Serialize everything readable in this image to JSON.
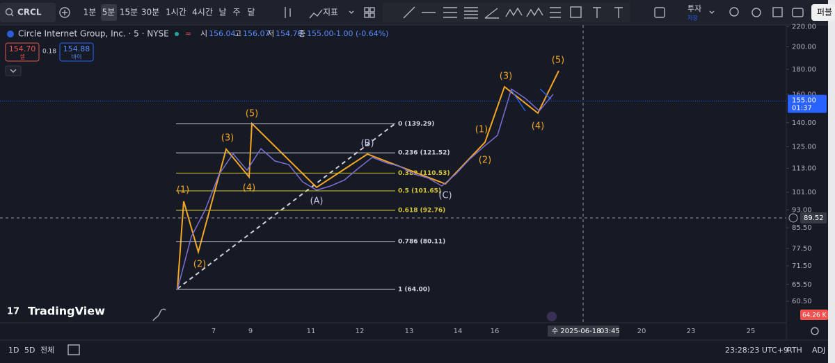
{
  "toolbar": {
    "symbol": "CRCL",
    "intervals": [
      "1분",
      "5분",
      "15분",
      "30분",
      "1시간",
      "4시간",
      "날",
      "주",
      "달"
    ],
    "indicators": "지표",
    "invest": "투자",
    "save": "저장",
    "publish": "퍼블"
  },
  "legend": {
    "title": "Circle Internet Group, Inc. · 5 · NYSE",
    "open_label": "시",
    "open": "156.04",
    "high_label": "고",
    "high": "156.07",
    "low_label": "저",
    "low": "154.70",
    "close_label": "종",
    "close": "155.00",
    "change": "-1.00 (-0.64%)",
    "sell_price": "154.70",
    "sell": "셀",
    "spread": "0.18",
    "buy_price": "154.88",
    "buy": "바이"
  },
  "chart_data": {
    "type": "line",
    "log_scale": true,
    "grid": false,
    "color": "#7b6fd6",
    "ylim": [
      54.7,
      226
    ],
    "yticks": [
      {
        "value": 220,
        "label": "220.00"
      },
      {
        "value": 200,
        "label": "200.00"
      },
      {
        "value": 180,
        "label": "180.00"
      },
      {
        "value": 160,
        "label": "160.00"
      },
      {
        "value": 140,
        "label": "140.00"
      },
      {
        "value": 125,
        "label": "125.00"
      },
      {
        "value": 113,
        "label": "113.00"
      },
      {
        "value": 101,
        "label": "101.00"
      },
      {
        "value": 93,
        "label": "93.00"
      },
      {
        "value": 85.5,
        "label": "85.50"
      },
      {
        "value": 77.5,
        "label": "77.50"
      },
      {
        "value": 71.5,
        "label": "71.50"
      },
      {
        "value": 65.5,
        "label": "65.50"
      },
      {
        "value": 60.5,
        "label": "60.50"
      }
    ],
    "values": [
      64,
      82,
      93,
      110,
      121,
      112,
      124,
      117,
      115,
      106,
      102,
      104,
      107,
      113,
      119,
      116,
      114,
      110,
      108,
      104,
      110,
      118,
      125,
      132,
      164,
      157,
      148,
      160
    ],
    "xtick_labels": [
      "7",
      "9",
      "11",
      "12",
      "13",
      "14",
      "16",
      "20",
      "23",
      "25"
    ],
    "crosshair_time": "수 2025-06-18",
    "crosshair_clock": "03:45",
    "crosshair_price": {
      "value": 89.52,
      "label": "89.52"
    },
    "last_price": {
      "value": 155,
      "label": "155.00"
    },
    "countdown": "01:37",
    "volume_label": "64.26 K",
    "fib_levels": [
      {
        "label": "0 (139.29)",
        "price": 139.29,
        "color": "#d1d4dc"
      },
      {
        "label": "0.236 (121.52)",
        "price": 121.52,
        "color": "#d1d4dc"
      },
      {
        "label": "0.382 (110.53)",
        "price": 110.53,
        "color": "#d9c53a"
      },
      {
        "label": "0.5 (101.65)",
        "price": 101.65,
        "color": "#d9c53a"
      },
      {
        "label": "0.618 (92.76)",
        "price": 92.76,
        "color": "#d9c53a"
      },
      {
        "label": "0.786 (80.11)",
        "price": 80.11,
        "color": "#d1d4dc"
      },
      {
        "label": "1 (64.00)",
        "price": 64,
        "color": "#d1d4dc"
      }
    ],
    "wave_labels": [
      "(1)",
      "(2)",
      "(3)",
      "(4)",
      "(5)",
      "(A)",
      "(B)",
      "(C)",
      "(1)",
      "(2)",
      "(3)",
      "(4)",
      "(5)"
    ]
  },
  "branding": "TradingView",
  "bottom_bar": {
    "ranges": [
      "1D",
      "5D",
      "전체"
    ],
    "clock": "23:28:23 UTC+9",
    "session": "RTH",
    "adjust": "ADJ"
  }
}
